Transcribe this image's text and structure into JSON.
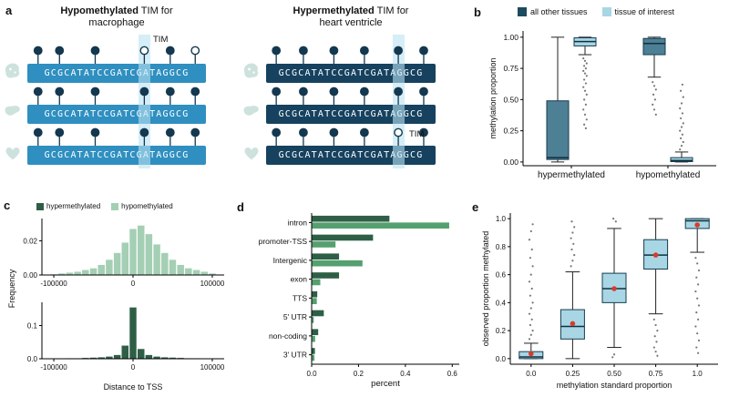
{
  "panel_labels": {
    "a": "a",
    "b": "b",
    "c": "c",
    "d": "d",
    "e": "e"
  },
  "panel_a": {
    "left": {
      "title_bold": "Hypomethylated",
      "title_rest": " TIM for",
      "title_line2": "macrophage",
      "tim_label": "TIM",
      "box_color": "#2f8fc0",
      "tim_index": 3,
      "positions": [
        0.06,
        0.18,
        0.38,
        0.655,
        0.8,
        0.94
      ],
      "rows": [
        {
          "icon": "macrophage",
          "sequence": "GCGCATATCCGATCGATAGGCG",
          "lollipops": [
            "m",
            "m",
            "m",
            "u",
            "m",
            "u"
          ]
        },
        {
          "icon": "liver",
          "sequence": "GCGCATATCCGATCGATAGGCG",
          "lollipops": [
            "m",
            "m",
            "m",
            "m",
            "m",
            "m"
          ]
        },
        {
          "icon": "heart",
          "sequence": "GCGCATATCCGATCGATAGGCG",
          "lollipops": [
            "m",
            "m",
            "m",
            "m",
            "m",
            "m"
          ]
        }
      ]
    },
    "right": {
      "title_bold": "Hypermethylated",
      "title_rest": " TIM for",
      "title_line2": "heart ventricle",
      "tim_label": "TIM",
      "box_color": "#16425f",
      "tim_index": 4,
      "positions": [
        0.06,
        0.22,
        0.4,
        0.58,
        0.78,
        0.93
      ],
      "rows": [
        {
          "icon": "macrophage",
          "sequence": "GCGCATATCCGATCGATAGGCG",
          "lollipops": [
            "m",
            "m",
            "m",
            "m",
            "m",
            "m"
          ]
        },
        {
          "icon": "liver",
          "sequence": "GCGCATATCCGATCGATAGGCG",
          "lollipops": [
            "m",
            "m",
            "m",
            "m",
            "m",
            "m"
          ]
        },
        {
          "icon": "heart",
          "sequence": "GCGCATATCCGATCGATAGGCG",
          "lollipops": [
            "m",
            "m",
            "m",
            "m",
            "u",
            "m"
          ]
        }
      ]
    }
  },
  "chart_data": [
    {
      "id": "b",
      "type": "boxplot",
      "ylabel": "methylation proportion",
      "ylim": [
        -0.03,
        1.05
      ],
      "yticks": [
        "0.00",
        "0.25",
        "0.50",
        "0.75",
        "1.00"
      ],
      "ytick_vals": [
        0,
        0.25,
        0.5,
        0.75,
        1.0
      ],
      "categories": [
        "hypermethylated",
        "hypomethylated"
      ],
      "legend": [
        {
          "label": "all other tissues",
          "color": "#1c4a5e"
        },
        {
          "label": "tissue of interest",
          "color": "#a9d6e5"
        }
      ],
      "boxes": [
        {
          "cat": 0,
          "slot": 0,
          "color": "#4d7f95",
          "whislo": 0.0,
          "q1": 0.02,
          "med": 0.035,
          "q3": 0.49,
          "whishi": 1.0,
          "outliers": []
        },
        {
          "cat": 0,
          "slot": 1,
          "color": "#a9d6e5",
          "whislo": 0.86,
          "q1": 0.93,
          "med": 0.965,
          "q3": 0.995,
          "whishi": 1.0,
          "outliers": [
            0.83,
            0.81,
            0.79,
            0.77,
            0.75,
            0.73,
            0.71,
            0.69,
            0.66,
            0.63,
            0.6,
            0.57,
            0.54,
            0.5,
            0.46,
            0.42,
            0.38,
            0.34,
            0.3,
            0.27
          ]
        },
        {
          "cat": 1,
          "slot": 0,
          "color": "#4d7f95",
          "whislo": 0.68,
          "q1": 0.86,
          "med": 0.95,
          "q3": 0.99,
          "whishi": 1.0,
          "outliers": [
            0.64,
            0.61,
            0.58,
            0.54,
            0.5,
            0.46,
            0.42,
            0.38
          ]
        },
        {
          "cat": 1,
          "slot": 1,
          "color": "#a9d6e5",
          "whislo": 0.0,
          "q1": 0.003,
          "med": 0.012,
          "q3": 0.035,
          "whishi": 0.08,
          "outliers": [
            0.1,
            0.13,
            0.16,
            0.19,
            0.22,
            0.25,
            0.28,
            0.31,
            0.35,
            0.39,
            0.43,
            0.47,
            0.52,
            0.57,
            0.62
          ]
        }
      ]
    },
    {
      "id": "c",
      "type": "histogram_pair",
      "ylabel_shared": "Frequency",
      "xlabel": "Distance to TSS",
      "xlim": [
        -115000,
        115000
      ],
      "xticks": [
        -100000,
        0,
        100000
      ],
      "xtick_labels": [
        "-100000",
        "0",
        "100000"
      ],
      "legend": [
        {
          "label": "hypermethylated",
          "color": "#2e5f46"
        },
        {
          "label": "hypomethylated",
          "color": "#a4cfb4"
        }
      ],
      "plots": [
        {
          "name": "hypomethylated",
          "color": "#a4cfb4",
          "yticks": [
            "0.00",
            "0.02"
          ],
          "ytick_vals": [
            0,
            0.02
          ],
          "ylim": [
            0,
            0.033
          ],
          "bin_start": -105000,
          "bin_width": 10000,
          "values": [
            0.0005,
            0.001,
            0.0015,
            0.002,
            0.003,
            0.004,
            0.006,
            0.009,
            0.013,
            0.019,
            0.027,
            0.029,
            0.024,
            0.018,
            0.013,
            0.009,
            0.006,
            0.004,
            0.003,
            0.002,
            0.001
          ]
        },
        {
          "name": "hypermethylated",
          "color": "#2e5f46",
          "yticks": [
            "0.0",
            "0.1"
          ],
          "ytick_vals": [
            0,
            0.1
          ],
          "ylim": [
            0,
            0.17
          ],
          "bin_start": -105000,
          "bin_width": 10000,
          "values": [
            0.001,
            0.001,
            0.002,
            0.002,
            0.003,
            0.004,
            0.005,
            0.007,
            0.012,
            0.04,
            0.155,
            0.03,
            0.012,
            0.007,
            0.005,
            0.004,
            0.003,
            0.002,
            0.002,
            0.001,
            0.001
          ]
        }
      ]
    },
    {
      "id": "d",
      "type": "hbar_pair",
      "xlabel": "percent",
      "xlim": [
        0,
        0.63
      ],
      "xticks": [
        "0.0",
        "0.2",
        "0.4",
        "0.6"
      ],
      "xtick_vals": [
        0,
        0.2,
        0.4,
        0.6
      ],
      "categories": [
        "intron",
        "promoter-TSS",
        "Intergenic",
        "exon",
        "TTS",
        "5' UTR",
        "non-coding",
        "3' UTR"
      ],
      "series": [
        {
          "name": "hypermethylated",
          "color": "#2e5f46",
          "values": [
            0.33,
            0.26,
            0.115,
            0.115,
            0.022,
            0.05,
            0.026,
            0.012
          ]
        },
        {
          "name": "hypomethylated",
          "color": "#54a06e",
          "values": [
            0.585,
            0.1,
            0.215,
            0.035,
            0.02,
            0.007,
            0.013,
            0.01
          ]
        }
      ]
    },
    {
      "id": "e",
      "type": "boxplot",
      "xlabel": "methylation standard proportion",
      "ylabel": "observed proportion methylated",
      "ylim": [
        -0.04,
        1.04
      ],
      "yticks": [
        "0.0",
        "0.2",
        "0.4",
        "0.6",
        "0.8",
        "1.0"
      ],
      "ytick_vals": [
        0,
        0.2,
        0.4,
        0.6,
        0.8,
        1.0
      ],
      "categories": [
        "0.0",
        "0.25",
        "0.50",
        "0.75",
        "1.0"
      ],
      "mean_color": "#d63d2b",
      "boxes": [
        {
          "cat": 0,
          "slot": 0,
          "color": "#a9d6e5",
          "whislo": 0.0,
          "q1": 0.0,
          "med": 0.012,
          "q3": 0.05,
          "whishi": 0.11,
          "mean": 0.035,
          "outliers": [
            0.14,
            0.17,
            0.2,
            0.24,
            0.28,
            0.32,
            0.36,
            0.4,
            0.45,
            0.5,
            0.55,
            0.6,
            0.66,
            0.72,
            0.78,
            0.85,
            0.91,
            0.96
          ]
        },
        {
          "cat": 1,
          "slot": 0,
          "color": "#a9d6e5",
          "whislo": 0.0,
          "q1": 0.14,
          "med": 0.23,
          "q3": 0.35,
          "whishi": 0.62,
          "mean": 0.25,
          "outliers": [
            0.66,
            0.7,
            0.74,
            0.78,
            0.82,
            0.86,
            0.9,
            0.94,
            0.98
          ]
        },
        {
          "cat": 2,
          "slot": 0,
          "color": "#a9d6e5",
          "whislo": 0.08,
          "q1": 0.4,
          "med": 0.5,
          "q3": 0.61,
          "whishi": 0.93,
          "mean": 0.5,
          "outliers": [
            0.01,
            0.03,
            0.98,
            1.0
          ]
        },
        {
          "cat": 3,
          "slot": 0,
          "color": "#a9d6e5",
          "whislo": 0.32,
          "q1": 0.64,
          "med": 0.74,
          "q3": 0.85,
          "whishi": 1.0,
          "mean": 0.74,
          "outliers": [
            0.28,
            0.24,
            0.2,
            0.16,
            0.12,
            0.08,
            0.05,
            0.02
          ]
        },
        {
          "cat": 4,
          "slot": 0,
          "color": "#a9d6e5",
          "whislo": 0.76,
          "q1": 0.93,
          "med": 0.985,
          "q3": 1.0,
          "whishi": 1.0,
          "mean": 0.955,
          "outliers": [
            0.72,
            0.68,
            0.63,
            0.58,
            0.53,
            0.48,
            0.43,
            0.38,
            0.33,
            0.28,
            0.23,
            0.18,
            0.13,
            0.08,
            0.04
          ]
        }
      ]
    }
  ]
}
